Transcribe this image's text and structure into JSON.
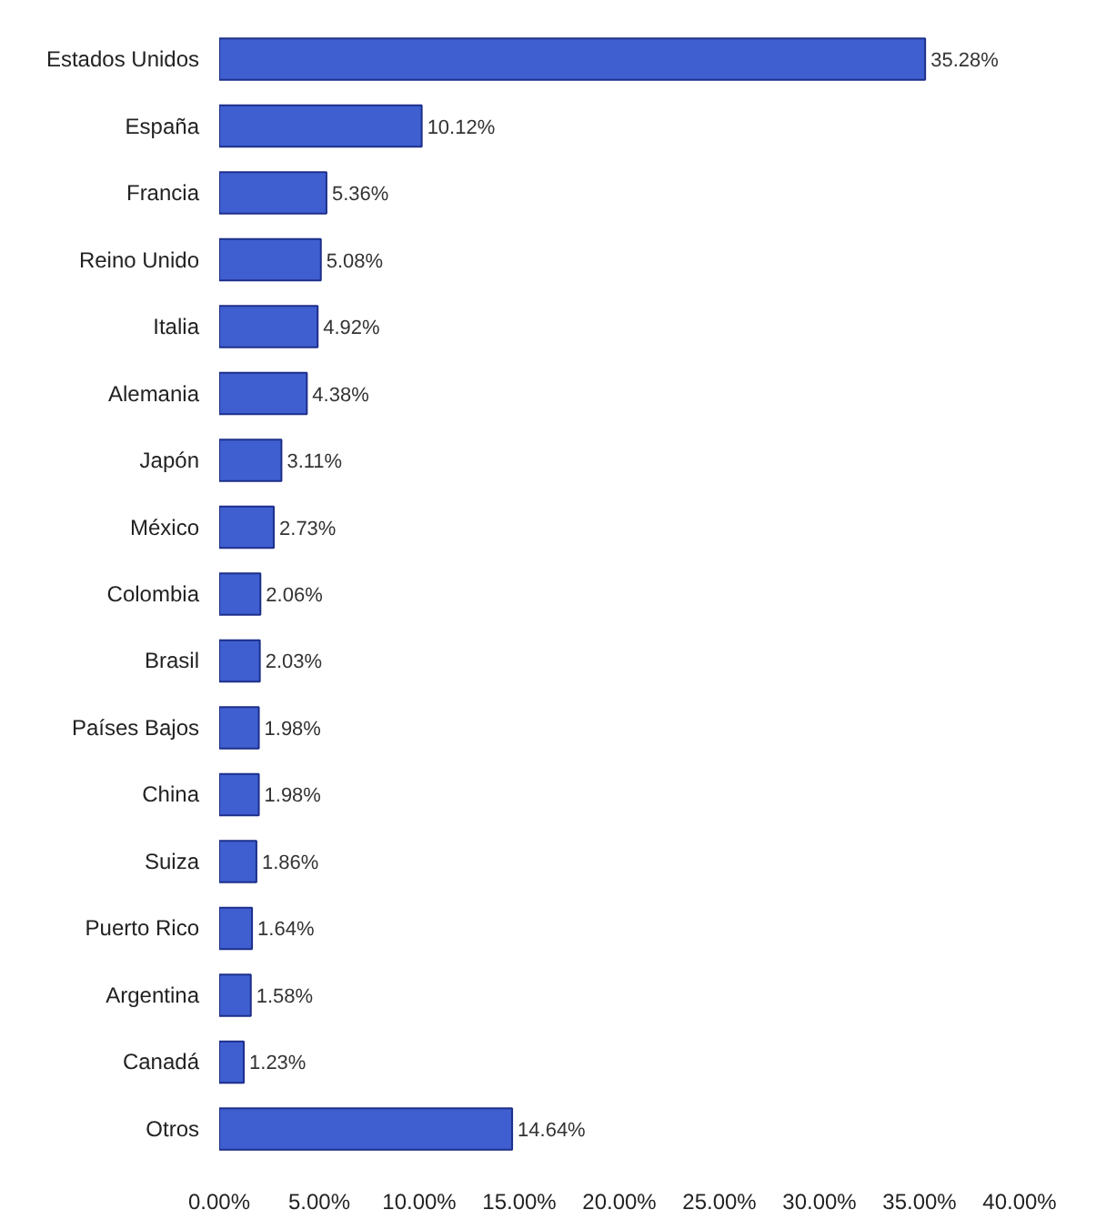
{
  "chart_data": {
    "type": "bar",
    "orientation": "horizontal",
    "categories": [
      "Estados Unidos",
      "España",
      "Francia",
      "Reino Unido",
      "Italia",
      "Alemania",
      "Japón",
      "México",
      "Colombia",
      "Brasil",
      "Países Bajos",
      "China",
      "Suiza",
      "Puerto Rico",
      "Argentina",
      "Canadá",
      "Otros"
    ],
    "values": [
      35.28,
      10.12,
      5.36,
      5.08,
      4.92,
      4.38,
      3.11,
      2.73,
      2.06,
      2.03,
      1.98,
      1.98,
      1.86,
      1.64,
      1.58,
      1.23,
      14.64
    ],
    "value_labels": [
      "35.28%",
      "10.12%",
      "5.36%",
      "5.08%",
      "4.92%",
      "4.38%",
      "3.11%",
      "2.73%",
      "2.06%",
      "2.03%",
      "1.98%",
      "1.98%",
      "1.86%",
      "1.64%",
      "1.58%",
      "1.23%",
      "14.64%"
    ],
    "color": "#3f5fd0",
    "xlim": [
      0,
      40
    ],
    "xticks": [
      {
        "value": 0,
        "label": "0.00%"
      },
      {
        "value": 5,
        "label": "5.00%"
      },
      {
        "value": 10,
        "label": "10.00%"
      },
      {
        "value": 15,
        "label": "15.00%"
      },
      {
        "value": 20,
        "label": "20.00%"
      },
      {
        "value": 25,
        "label": "25.00%"
      },
      {
        "value": 30,
        "label": "30.00%"
      },
      {
        "value": 35,
        "label": "35.00%"
      },
      {
        "value": 40,
        "label": "40.00%"
      }
    ],
    "grid": false
  }
}
